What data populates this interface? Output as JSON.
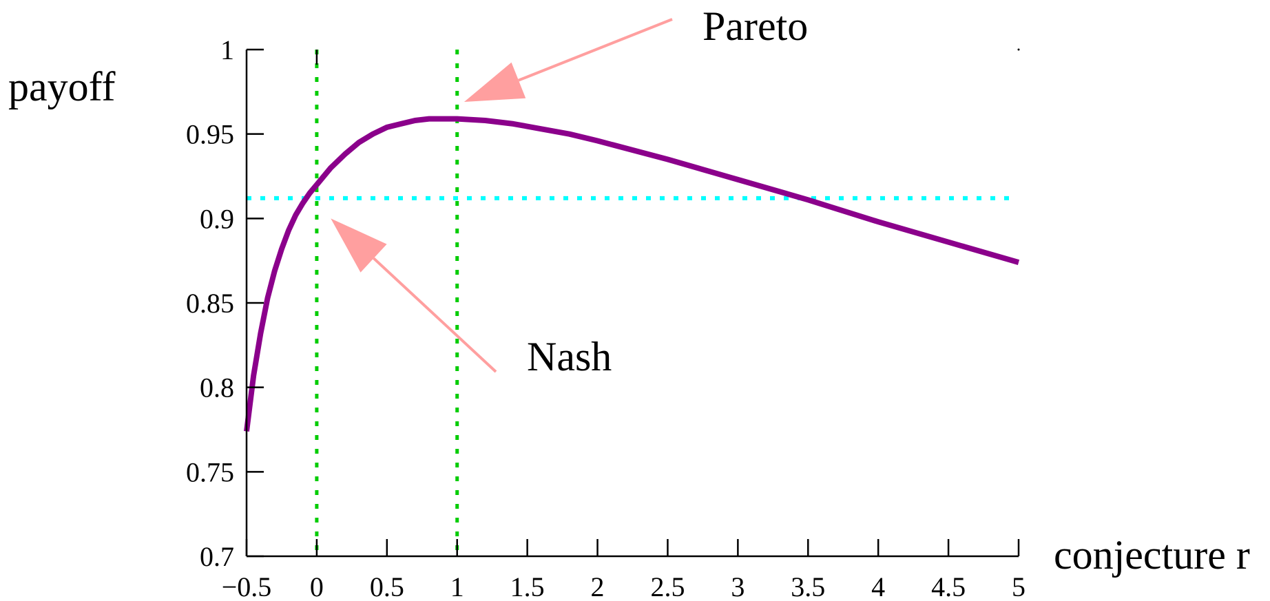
{
  "chart_data": {
    "type": "line",
    "ylabel": "payoff",
    "xlabel": "conjecture r",
    "xlim": [
      -0.5,
      5
    ],
    "ylim": [
      0.7,
      1.0
    ],
    "x_ticks": [
      {
        "value": -0.5,
        "label": "−0.5"
      },
      {
        "value": 0,
        "label": "0"
      },
      {
        "value": 0.5,
        "label": "0.5"
      },
      {
        "value": 1,
        "label": "1"
      },
      {
        "value": 1.5,
        "label": "1.5"
      },
      {
        "value": 2,
        "label": "2"
      },
      {
        "value": 2.5,
        "label": "2.5"
      },
      {
        "value": 3,
        "label": "3"
      },
      {
        "value": 3.5,
        "label": "3.5"
      },
      {
        "value": 4,
        "label": "4"
      },
      {
        "value": 4.5,
        "label": "4.5"
      },
      {
        "value": 5,
        "label": "5"
      }
    ],
    "y_ticks": [
      {
        "value": 0.7,
        "label": "0.7"
      },
      {
        "value": 0.75,
        "label": "0.75"
      },
      {
        "value": 0.8,
        "label": "0.8"
      },
      {
        "value": 0.85,
        "label": "0.85"
      },
      {
        "value": 0.9,
        "label": "0.9"
      },
      {
        "value": 0.95,
        "label": "0.95"
      },
      {
        "value": 1,
        "label": "1"
      }
    ],
    "grid": false,
    "series": [
      {
        "color": "#8b008b",
        "x": [
          -0.5,
          -0.45,
          -0.4,
          -0.35,
          -0.3,
          -0.25,
          -0.2,
          -0.15,
          -0.1,
          -0.05,
          0,
          0.1,
          0.2,
          0.3,
          0.4,
          0.5,
          0.6,
          0.7,
          0.8,
          0.9,
          1.0,
          1.2,
          1.4,
          1.6,
          1.8,
          2.0,
          2.5,
          3.0,
          3.5,
          4.0,
          4.5,
          5.0
        ],
        "y": [
          0.774,
          0.807,
          0.832,
          0.853,
          0.869,
          0.882,
          0.893,
          0.902,
          0.909,
          0.915,
          0.92,
          0.93,
          0.938,
          0.945,
          0.95,
          0.954,
          0.956,
          0.958,
          0.959,
          0.959,
          0.959,
          0.958,
          0.956,
          0.953,
          0.95,
          0.946,
          0.935,
          0.923,
          0.911,
          0.898,
          0.886,
          0.874
        ]
      }
    ],
    "reference_lines": [
      {
        "orientation": "vertical",
        "value": 0,
        "color": "#00cc00",
        "style": "dotted"
      },
      {
        "orientation": "vertical",
        "value": 1,
        "color": "#00cc00",
        "style": "dotted"
      },
      {
        "orientation": "horizontal",
        "value": 0.912,
        "color": "#00ffff",
        "style": "dotted"
      }
    ],
    "annotations": [
      {
        "text": "Pareto",
        "label_x": 2.6,
        "label_y": 0.985,
        "point_x": 1.05,
        "point_y": 0.969,
        "arrow_color": "#ff9f9f"
      },
      {
        "text": "Nash",
        "label_x": 1.27,
        "label_y": 0.811,
        "point_x": 0.1,
        "point_y": 0.9,
        "arrow_color": "#ff9f9f"
      }
    ]
  }
}
